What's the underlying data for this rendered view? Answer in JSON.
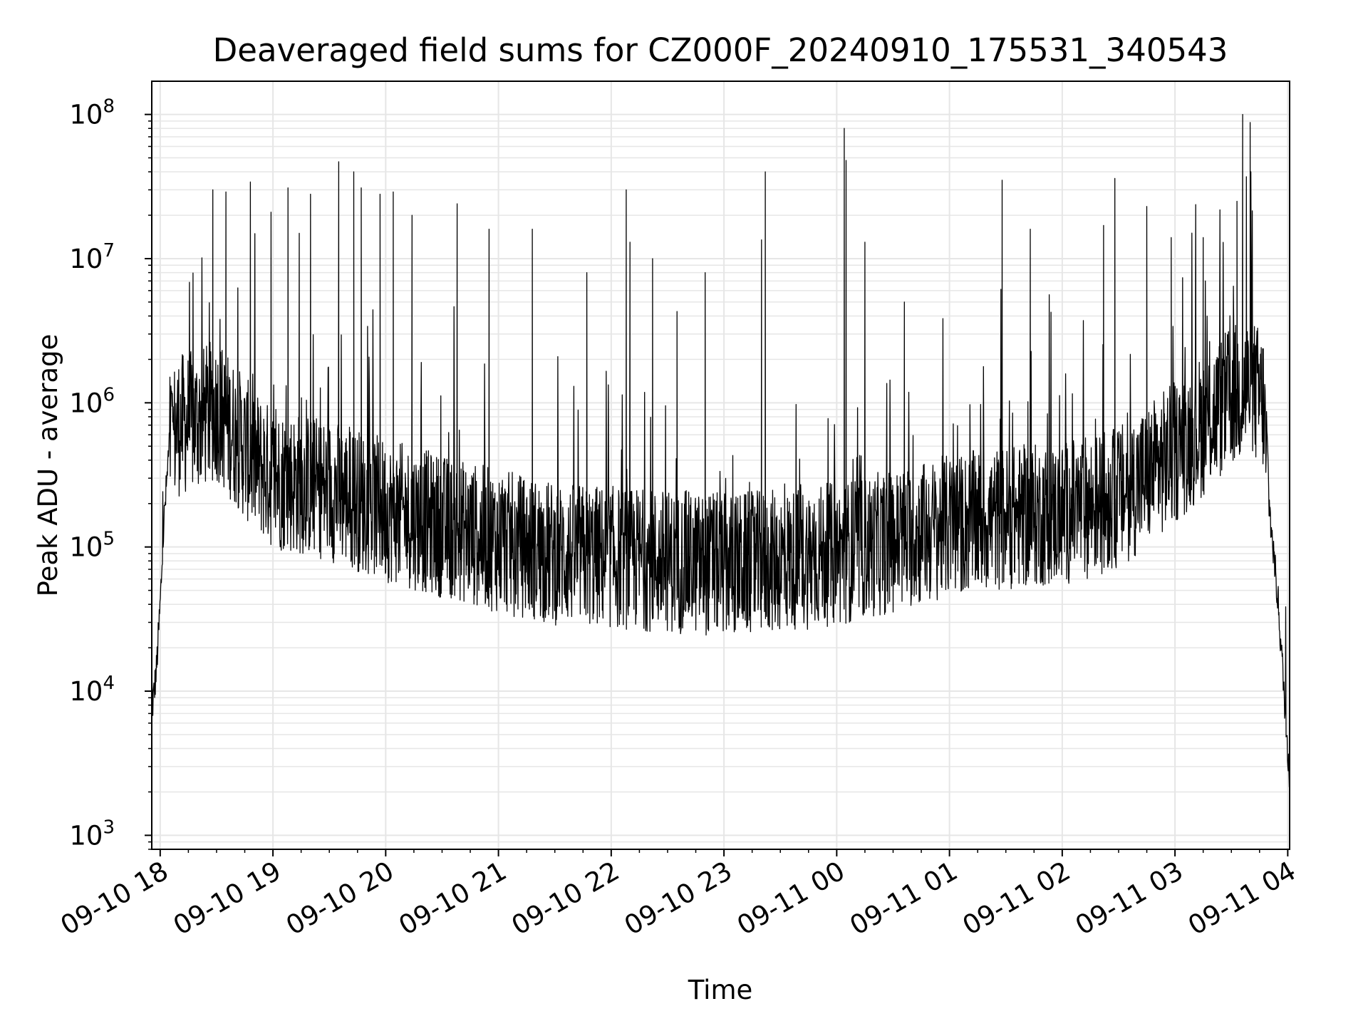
{
  "chart_data": {
    "type": "line",
    "title": "Deaveraged field sums for CZ000F_20240910_175531_340543",
    "xlabel": "Time",
    "ylabel": "Peak ADU - average",
    "yscale": "log",
    "ylim": [
      800,
      170000000
    ],
    "xlim": [
      "2024-09-10 17:55:31",
      "2024-09-11 04:01:00"
    ],
    "grid": true,
    "line_color": "#000000",
    "grid_color": "#e6e6e6",
    "x_ticks": [
      {
        "label": "09-10 18",
        "t": "2024-09-10 18:00"
      },
      {
        "label": "09-10 19",
        "t": "2024-09-10 19:00"
      },
      {
        "label": "09-10 20",
        "t": "2024-09-10 20:00"
      },
      {
        "label": "09-10 21",
        "t": "2024-09-10 21:00"
      },
      {
        "label": "09-10 22",
        "t": "2024-09-10 22:00"
      },
      {
        "label": "09-10 23",
        "t": "2024-09-10 23:00"
      },
      {
        "label": "09-11 00",
        "t": "2024-09-11 00:00"
      },
      {
        "label": "09-11 01",
        "t": "2024-09-11 01:00"
      },
      {
        "label": "09-11 02",
        "t": "2024-09-11 02:00"
      },
      {
        "label": "09-11 03",
        "t": "2024-09-11 03:00"
      },
      {
        "label": "09-11 04",
        "t": "2024-09-11 04:00"
      }
    ],
    "y_ticks": [
      {
        "base": "10",
        "exp": "3",
        "value": 1000
      },
      {
        "base": "10",
        "exp": "4",
        "value": 10000
      },
      {
        "base": "10",
        "exp": "5",
        "value": 100000
      },
      {
        "base": "10",
        "exp": "6",
        "value": 1000000
      },
      {
        "base": "10",
        "exp": "7",
        "value": 10000000
      },
      {
        "base": "10",
        "exp": "8",
        "value": 100000000
      }
    ],
    "series": [
      {
        "baseline": [
          [
            "2024-09-10 17:55",
            20000
          ],
          [
            "2024-09-10 17:56",
            8000
          ],
          [
            "2024-09-10 17:58",
            14000
          ],
          [
            "2024-09-10 18:00",
            40000
          ],
          [
            "2024-09-10 18:02",
            150000
          ],
          [
            "2024-09-10 18:05",
            550000
          ],
          [
            "2024-09-10 18:10",
            700000
          ],
          [
            "2024-09-10 18:20",
            750000
          ],
          [
            "2024-09-10 18:30",
            900000
          ],
          [
            "2024-09-10 18:40",
            600000
          ],
          [
            "2024-09-10 18:50",
            400000
          ],
          [
            "2024-09-10 19:00",
            300000
          ],
          [
            "2024-09-10 19:30",
            250000
          ],
          [
            "2024-09-10 20:00",
            180000
          ],
          [
            "2024-09-10 20:30",
            140000
          ],
          [
            "2024-09-10 21:00",
            110000
          ],
          [
            "2024-09-10 21:30",
            90000
          ],
          [
            "2024-09-10 22:00",
            85000
          ],
          [
            "2024-09-10 22:30",
            80000
          ],
          [
            "2024-09-10 23:00",
            75000
          ],
          [
            "2024-09-10 23:30",
            80000
          ],
          [
            "2024-09-11 00:00",
            90000
          ],
          [
            "2024-09-11 00:30",
            110000
          ],
          [
            "2024-09-11 01:00",
            140000
          ],
          [
            "2024-09-11 01:30",
            160000
          ],
          [
            "2024-09-11 02:00",
            170000
          ],
          [
            "2024-09-11 02:30",
            220000
          ],
          [
            "2024-09-11 03:00",
            450000
          ],
          [
            "2024-09-11 03:30",
            1100000
          ],
          [
            "2024-09-11 03:40",
            1300000
          ],
          [
            "2024-09-11 03:47",
            1000000
          ],
          [
            "2024-09-11 03:50",
            200000
          ],
          [
            "2024-09-11 03:55",
            40000
          ],
          [
            "2024-09-11 03:58",
            10000
          ],
          [
            "2024-09-11 04:01",
            2500
          ]
        ],
        "spikes": [
          [
            "2024-09-10 18:28",
            30000000
          ],
          [
            "2024-09-10 18:35",
            29000000
          ],
          [
            "2024-09-10 18:48",
            34000000
          ],
          [
            "2024-09-10 18:59",
            21000000
          ],
          [
            "2024-09-10 19:08",
            31000000
          ],
          [
            "2024-09-10 19:14",
            15000000
          ],
          [
            "2024-09-10 19:20",
            28000000
          ],
          [
            "2024-09-10 19:35",
            47000000
          ],
          [
            "2024-09-10 19:43",
            40000000
          ],
          [
            "2024-09-10 19:47",
            31000000
          ],
          [
            "2024-09-10 19:57",
            28000000
          ],
          [
            "2024-09-10 20:04",
            29000000
          ],
          [
            "2024-09-10 20:14",
            20000000
          ],
          [
            "2024-09-10 20:38",
            24000000
          ],
          [
            "2024-09-10 20:55",
            16000000
          ],
          [
            "2024-09-10 21:18",
            16000000
          ],
          [
            "2024-09-10 21:47",
            8000000
          ],
          [
            "2024-09-10 22:08",
            30000000
          ],
          [
            "2024-09-10 22:10",
            13000000
          ],
          [
            "2024-09-10 22:22",
            10000000
          ],
          [
            "2024-09-10 22:35",
            4300000
          ],
          [
            "2024-09-10 22:50",
            8000000
          ],
          [
            "2024-09-10 23:20",
            13500000
          ],
          [
            "2024-09-10 23:22",
            40000000
          ],
          [
            "2024-09-11 00:04",
            80000000
          ],
          [
            "2024-09-11 00:05",
            48000000
          ],
          [
            "2024-09-11 00:15",
            13000000
          ],
          [
            "2024-09-11 00:36",
            5000000
          ],
          [
            "2024-09-11 01:28",
            35000000
          ],
          [
            "2024-09-11 01:43",
            16000000
          ],
          [
            "2024-09-11 02:22",
            17000000
          ],
          [
            "2024-09-11 02:28",
            36000000
          ],
          [
            "2024-09-11 02:45",
            23000000
          ],
          [
            "2024-09-11 02:58",
            14000000
          ],
          [
            "2024-09-11 03:15",
            14000000
          ],
          [
            "2024-09-11 03:33",
            25000000
          ],
          [
            "2024-09-11 03:36",
            100000000
          ],
          [
            "2024-09-11 03:38",
            37000000
          ],
          [
            "2024-09-11 03:40",
            88000000
          ]
        ]
      }
    ]
  }
}
